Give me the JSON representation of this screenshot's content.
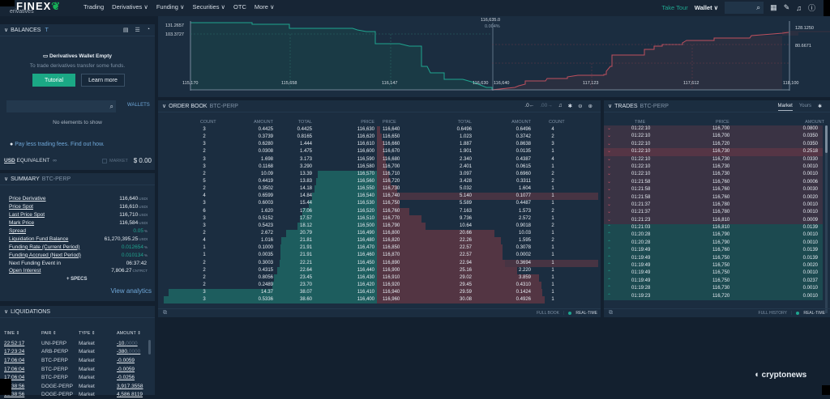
{
  "topbar": {
    "logo": "FINEX",
    "logo_sub": "erivatives",
    "nav": [
      "Trading",
      "Derivatives ∨",
      "Funding ∨",
      "Securities ∨",
      "OTC",
      "More ∨"
    ],
    "take_tour": "Take Tour",
    "wallet": "Wallet ∨",
    "icons": [
      "apps-icon",
      "tag-icon",
      "bell-icon",
      "help-icon"
    ]
  },
  "balances": {
    "title": "BALANCES",
    "empty_title": "Derivatives Wallet Empty",
    "empty_desc": "To trade derivatives transfer some funds.",
    "tutorial_label": "Tutorial",
    "learn_more_label": "Learn more",
    "wallets_link": "WALLETS",
    "no_elements": "No elements to show",
    "pay_less": "Pay less trading fees. Find out how.",
    "usd_equivalent_prefix": "USD",
    "usd_equivalent_suffix": " EQUIVALENT",
    "market_label": "MARKET",
    "usd_value": "$ 0.00"
  },
  "summary": {
    "title": "SUMMARY",
    "pair": "BTC-PERP",
    "rows": [
      {
        "label": "Price Derivative",
        "value": "116,640",
        "unit": "USDt"
      },
      {
        "label": "Price Spot",
        "value": "116,610",
        "unit": "USDt"
      },
      {
        "label": "Last Price Spot",
        "value": "116,710",
        "unit": "USDt"
      },
      {
        "label": "Mark Price",
        "value": "116,584",
        "unit": "USDt"
      },
      {
        "label": "Spread",
        "value": "0.05",
        "unit": "%"
      },
      {
        "label": "Liquidation Fund Balance",
        "value": "61,270,395.25",
        "unit": "USDt"
      },
      {
        "label": "Funding Rate (Current Period)",
        "value": "0.012654",
        "unit": "%"
      },
      {
        "label": "Funding Accrued (Next Period)",
        "value": "0.010134",
        "unit": "%"
      },
      {
        "label": "Next Funding Event in",
        "value": "06:37:42",
        "unit": ""
      },
      {
        "label": "Open Interest",
        "value": "7,806.27",
        "unit": "CNTRCT"
      }
    ],
    "specs_label": "+ SPECS",
    "view_analytics": "View analytics"
  },
  "liquidations": {
    "title": "LIQUIDATIONS",
    "headers": [
      "TIME ⇕",
      "PAIR ⇕",
      "TYPE ⇕",
      "AMOUNT ⇕"
    ],
    "rows": [
      {
        "time": "22:52:17",
        "pair": "UNI-PERP",
        "type": "Market",
        "amount": "-10.",
        "dim": "0000"
      },
      {
        "time": "17:23:24",
        "pair": "ARB-PERP",
        "type": "Market",
        "amount": "-380.",
        "dim": "0000"
      },
      {
        "time": "17:06:04",
        "pair": "BTC-PERP",
        "type": "Market",
        "amount": "-0.0059",
        "dim": ""
      },
      {
        "time": "17:06:04",
        "pair": "BTC-PERP",
        "type": "Market",
        "amount": "-0.0059",
        "dim": ""
      },
      {
        "time": "17:06:04",
        "pair": "BTC-PERP",
        "type": "Market",
        "amount": "-0.0256",
        "dim": ""
      },
      {
        "time": "16:38:56",
        "pair": "DOGE-PERP",
        "type": "Market",
        "amount": "3,917.3558",
        "dim": ""
      },
      {
        "time": "16:38:56",
        "pair": "DOGE-PERP",
        "type": "Market",
        "amount": "4,586.8119",
        "dim": ""
      }
    ]
  },
  "depth_chart": {
    "mid_price": "116,635.0",
    "mid_pct": "0.004%",
    "left_y_labels": [
      "131.2657",
      "103.3727"
    ],
    "right_y_labels": [
      "128.1250",
      "80.6671"
    ],
    "x_labels": [
      "115,170",
      "115,658",
      "116,147",
      "116,630",
      "116,640",
      "117,123",
      "117,612",
      "118,100"
    ],
    "bid_color": "#1fa58f",
    "ask_color": "#c0505e"
  },
  "orderbook": {
    "title": "ORDER BOOK",
    "pair": "BTC-PERP",
    "bid_headers": [
      "COUNT",
      "AMOUNT",
      "TOTAL",
      "PRICE"
    ],
    "ask_headers": [
      "PRICE",
      "TOTAL",
      "AMOUNT",
      "COUNT"
    ],
    "bids": [
      {
        "count": "3",
        "amount": "0.4425",
        "total": "0.4425",
        "price": "116,630",
        "depth": 0
      },
      {
        "count": "2",
        "amount": "0.3739",
        "total": "0.8165",
        "price": "116,620",
        "depth": 0
      },
      {
        "count": "3",
        "amount": "0.6280",
        "total": "1.444",
        "price": "116,610",
        "depth": 0
      },
      {
        "count": "2",
        "amount": "0.0308",
        "total": "1.475",
        "price": "116,600",
        "depth": 0
      },
      {
        "count": "3",
        "amount": "1.698",
        "total": "3.173",
        "price": "116,590",
        "depth": 0
      },
      {
        "count": "3",
        "amount": "0.1168",
        "total": "3.290",
        "price": "116,580",
        "depth": 0
      },
      {
        "count": "2",
        "amount": "10.09",
        "total": "13.39",
        "price": "116,570",
        "depth": 73
      },
      {
        "count": "5",
        "amount": "0.4419",
        "total": "13.83",
        "price": "116,560",
        "depth": 75
      },
      {
        "count": "2",
        "amount": "0.3502",
        "total": "14.18",
        "price": "116,550",
        "depth": 77
      },
      {
        "count": "4",
        "amount": "0.6599",
        "total": "14.84",
        "price": "116,540",
        "depth": 80
      },
      {
        "count": "3",
        "amount": "0.6003",
        "total": "15.44",
        "price": "116,530",
        "depth": 84
      },
      {
        "count": "6",
        "amount": "1.620",
        "total": "17.06",
        "price": "116,520",
        "depth": 92
      },
      {
        "count": "3",
        "amount": "0.5152",
        "total": "17.57",
        "price": "116,510",
        "depth": 95
      },
      {
        "count": "3",
        "amount": "0.5423",
        "total": "18.12",
        "price": "116,500",
        "depth": 98
      },
      {
        "count": "2",
        "amount": "2.672",
        "total": "20.79",
        "price": "116,490",
        "depth": 112
      },
      {
        "count": "4",
        "amount": "1.016",
        "total": "21.81",
        "price": "116,480",
        "depth": 118
      },
      {
        "count": "1",
        "amount": "0.1000",
        "total": "21.91",
        "price": "116,470",
        "depth": 119
      },
      {
        "count": "1",
        "amount": "0.0035",
        "total": "21.91",
        "price": "116,460",
        "depth": 119
      },
      {
        "count": "2",
        "amount": "0.3003",
        "total": "22.21",
        "price": "116,450",
        "depth": 120
      },
      {
        "count": "2",
        "amount": "0.4315",
        "total": "22.64",
        "price": "116,440",
        "depth": 123
      },
      {
        "count": "2",
        "amount": "0.8056",
        "total": "23.45",
        "price": "116,430",
        "depth": 127
      },
      {
        "count": "2",
        "amount": "0.2489",
        "total": "23.70",
        "price": "116,420",
        "depth": 129
      },
      {
        "count": "3",
        "amount": "14.37",
        "total": "38.07",
        "price": "116,410",
        "depth": 257
      },
      {
        "count": "3",
        "amount": "0.5336",
        "total": "38.60",
        "price": "116,400",
        "depth": 263
      }
    ],
    "asks": [
      {
        "price": "116,640",
        "total": "0.6496",
        "amount": "0.6496",
        "count": "4",
        "depth": 4
      },
      {
        "price": "116,650",
        "total": "1.023",
        "amount": "0.3742",
        "count": "2",
        "depth": 6
      },
      {
        "price": "116,660",
        "total": "1.887",
        "amount": "0.8638",
        "count": "3",
        "depth": 9
      },
      {
        "price": "116,670",
        "total": "1.901",
        "amount": "0.0135",
        "count": "1",
        "depth": 9
      },
      {
        "price": "116,680",
        "total": "2.340",
        "amount": "0.4387",
        "count": "4",
        "depth": 11
      },
      {
        "price": "116,700",
        "total": "2.401",
        "amount": "0.0615",
        "count": "1",
        "depth": 12
      },
      {
        "price": "116,710",
        "total": "3.097",
        "amount": "0.6960",
        "count": "2",
        "depth": 15
      },
      {
        "price": "116,720",
        "total": "3.428",
        "amount": "0.3311",
        "count": "2",
        "depth": 17
      },
      {
        "price": "116,730",
        "total": "5.032",
        "amount": "1.604",
        "count": "1",
        "depth": 25
      },
      {
        "price": "116,740",
        "total": "5.140",
        "amount": "0.1077",
        "count": "1",
        "depth": 26
      },
      {
        "price": "116,750",
        "total": "5.589",
        "amount": "0.4487",
        "count": "1",
        "depth": 28
      },
      {
        "price": "116,760",
        "total": "7.163",
        "amount": "1.573",
        "count": "2",
        "depth": 40
      },
      {
        "price": "116,770",
        "total": "9.736",
        "amount": "2.572",
        "count": "1",
        "depth": 55
      },
      {
        "price": "116,790",
        "total": "10.64",
        "amount": "0.9018",
        "count": "2",
        "depth": 60
      },
      {
        "price": "116,800",
        "total": "20.66",
        "amount": "10.03",
        "count": "1",
        "depth": 145
      },
      {
        "price": "116,820",
        "total": "22.26",
        "amount": "1.595",
        "count": "2",
        "depth": 153
      },
      {
        "price": "116,850",
        "total": "22.57",
        "amount": "0.3078",
        "count": "1",
        "depth": 155
      },
      {
        "price": "116,870",
        "total": "22.57",
        "amount": "0.0002",
        "count": "1",
        "depth": 155
      },
      {
        "price": "116,890",
        "total": "22.94",
        "amount": "0.3694",
        "count": "1",
        "depth": 158
      },
      {
        "price": "116,900",
        "total": "25.16",
        "amount": "2.220",
        "count": "1",
        "depth": 173
      },
      {
        "price": "116,910",
        "total": "29.02",
        "amount": "3.859",
        "count": "1",
        "depth": 200
      },
      {
        "price": "116,920",
        "total": "29.45",
        "amount": "0.4310",
        "count": "1",
        "depth": 203
      },
      {
        "price": "116,940",
        "total": "29.59",
        "amount": "0.1424",
        "count": "1",
        "depth": 204
      },
      {
        "price": "116,960",
        "total": "30.08",
        "amount": "0.4926",
        "count": "1",
        "depth": 207
      }
    ],
    "footer_full_book": "FULL BOOK",
    "footer_realtime": "REAL-TIME"
  },
  "trades": {
    "title": "TRADES",
    "pair": "BTC-PERP",
    "tab_market": "Market",
    "tab_yours": "Yours",
    "headers": [
      "TIME",
      "PRICE",
      "AMOUNT"
    ],
    "rows": [
      {
        "side": "sell",
        "time": "01:22:10",
        "price": "116,700",
        "amount": "0.0800"
      },
      {
        "side": "sell",
        "time": "01:22:10",
        "price": "116,700",
        "amount": "0.0350"
      },
      {
        "side": "sell",
        "time": "01:22:10",
        "price": "116,720",
        "amount": "0.0350"
      },
      {
        "side": "sell",
        "time": "01:22:10",
        "price": "116,730",
        "amount": "0.2518",
        "hi": true
      },
      {
        "side": "sell",
        "time": "01:22:10",
        "price": "116,730",
        "amount": "0.0330"
      },
      {
        "side": "sell",
        "time": "01:22:10",
        "price": "116,730",
        "amount": "0.0010"
      },
      {
        "side": "sell",
        "time": "01:22:10",
        "price": "116,730",
        "amount": "0.0010"
      },
      {
        "side": "sell",
        "time": "01:21:58",
        "price": "116,760",
        "amount": "0.0006"
      },
      {
        "side": "sell",
        "time": "01:21:58",
        "price": "116,760",
        "amount": "0.0030"
      },
      {
        "side": "sell",
        "time": "01:21:58",
        "price": "116,760",
        "amount": "0.0020"
      },
      {
        "side": "sell",
        "time": "01:21:37",
        "price": "116,780",
        "amount": "0.0010"
      },
      {
        "side": "sell",
        "time": "01:21:37",
        "price": "116,780",
        "amount": "0.0010"
      },
      {
        "side": "sell",
        "time": "01:21:23",
        "price": "116,810",
        "amount": "0.0009"
      },
      {
        "side": "buy",
        "time": "01:21:03",
        "price": "116,810",
        "amount": "0.0139"
      },
      {
        "side": "buy",
        "time": "01:20:28",
        "price": "116,790",
        "amount": "0.0010"
      },
      {
        "side": "buy",
        "time": "01:20:28",
        "price": "116,790",
        "amount": "0.0010"
      },
      {
        "side": "buy",
        "time": "01:19:49",
        "price": "116,760",
        "amount": "0.0139"
      },
      {
        "side": "buy",
        "time": "01:19:49",
        "price": "116,750",
        "amount": "0.0139"
      },
      {
        "side": "buy",
        "time": "01:19:49",
        "price": "116,750",
        "amount": "0.0020"
      },
      {
        "side": "buy",
        "time": "01:19:49",
        "price": "116,750",
        "amount": "0.0010"
      },
      {
        "side": "buy",
        "time": "01:19:49",
        "price": "116,750",
        "amount": "0.0237"
      },
      {
        "side": "buy",
        "time": "01:19:28",
        "price": "116,730",
        "amount": "0.0010"
      },
      {
        "side": "buy",
        "time": "01:19:23",
        "price": "116,720",
        "amount": "0.0010"
      }
    ],
    "footer_full_history": "FULL HISTORY",
    "footer_realtime": "REAL-TIME"
  },
  "watermark": "cryptonews"
}
